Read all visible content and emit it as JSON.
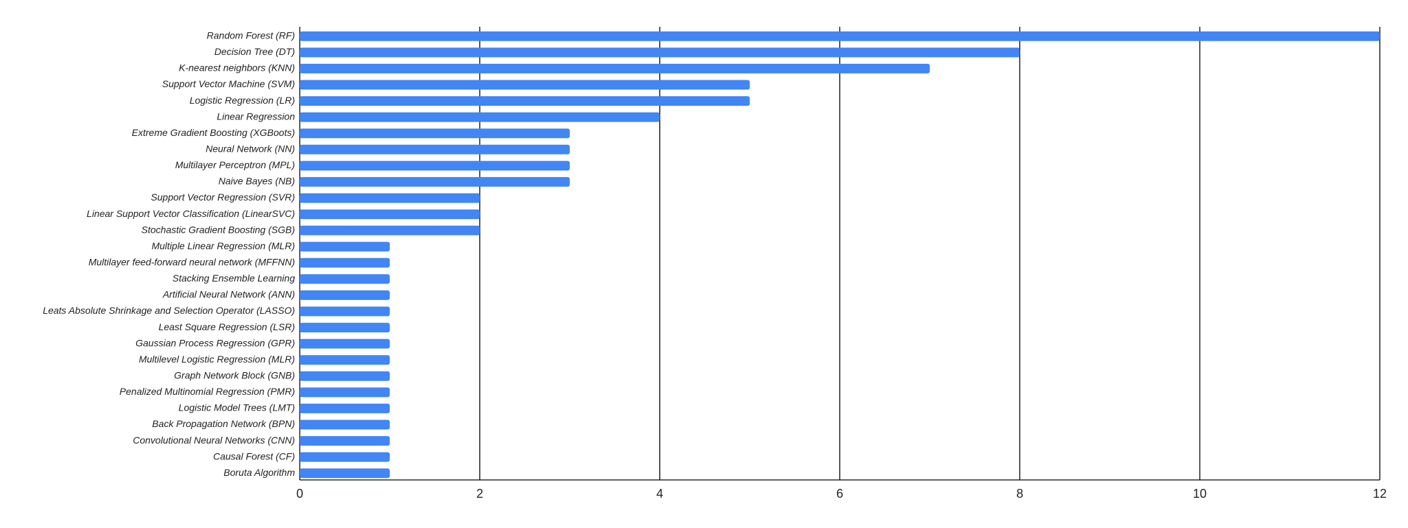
{
  "chart_data": {
    "type": "barh",
    "categories": [
      "Random Forest (RF)",
      "Decision Tree (DT)",
      "K-nearest neighbors (KNN)",
      "Support Vector Machine (SVM)",
      "Logistic Regression (LR)",
      "Linear Regression",
      "Extreme Gradient Boosting (XGBoots)",
      "Neural Network (NN)",
      "Multilayer Perceptron (MPL)",
      "Naive Bayes (NB)",
      "Support Vector Regression (SVR)",
      "Linear Support Vector Classification (LinearSVC)",
      "Stochastic Gradient Boosting (SGB)",
      "Multiple Linear Regression (MLR)",
      "Multilayer feed-forward neural network (MFFNN)",
      "Stacking Ensemble Learning",
      "Artificial Neural Network (ANN)",
      "Leats Absolute Shrinkage and Selection Operator (LASSO)",
      "Least Square Regression (LSR)",
      "Gaussian Process Regression (GPR)",
      "Multilevel Logistic Regression (MLR)",
      "Graph Network Block (GNB)",
      "Penalized Multinomial Regression (PMR)",
      "Logistic Model Trees (LMT)",
      "Back Propagation Network (BPN)",
      "Convolutional Neural Networks (CNN)",
      "Causal Forest (CF)",
      "Boruta Algorithm"
    ],
    "values": [
      12,
      8,
      7,
      5,
      5,
      4,
      3,
      3,
      3,
      3,
      2,
      2,
      2,
      1,
      1,
      1,
      1,
      1,
      1,
      1,
      1,
      1,
      1,
      1,
      1,
      1,
      1,
      1
    ],
    "color": "#4285f4",
    "xlim": [
      0,
      12
    ],
    "xticks": [
      0,
      2,
      4,
      6,
      8,
      10,
      12
    ],
    "grid": true
  }
}
